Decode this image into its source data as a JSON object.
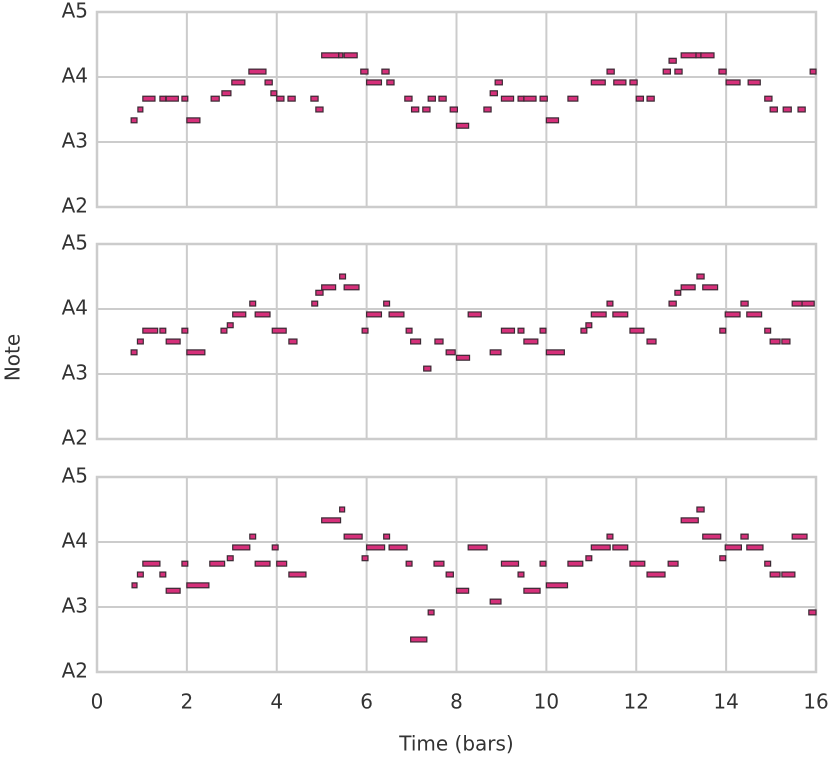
{
  "chart_data": [
    {
      "type": "piano-roll",
      "color": "#d6307a",
      "edgecolor": "#3b2a34",
      "grid": true,
      "xlim": [
        0,
        16
      ],
      "xticks": [
        0,
        2,
        4,
        6,
        8,
        10,
        12,
        14,
        16
      ],
      "ylim": [
        45,
        81
      ],
      "yticks": [
        {
          "value": 45,
          "label": "A2"
        },
        {
          "value": 57,
          "label": "A3"
        },
        {
          "value": 69,
          "label": "A4"
        },
        {
          "value": 81,
          "label": "A5"
        }
      ],
      "x": [
        0.76,
        0.91,
        1.02,
        1.4,
        1.54,
        1.89,
        2.0,
        2.54,
        2.78,
        3.0,
        3.38,
        3.74,
        3.87,
        4.0,
        4.25,
        4.76,
        4.87,
        5.0,
        5.38,
        5.5,
        5.87,
        6.0,
        6.34,
        6.45,
        6.85,
        7.0,
        7.25,
        7.37,
        7.61,
        7.86,
        8.0,
        8.61,
        8.75,
        8.86,
        9.0,
        9.37,
        9.5,
        9.86,
        10.0,
        10.48,
        11.0,
        11.35,
        11.5,
        11.86,
        12.0,
        12.24,
        12.6,
        12.73,
        12.86,
        13.0,
        13.33,
        13.44,
        13.84,
        14.0,
        14.49,
        14.86,
        14.98,
        15.27,
        15.6,
        15.87
      ],
      "duration": [
        0.13,
        0.11,
        0.27,
        0.13,
        0.27,
        0.13,
        0.29,
        0.18,
        0.2,
        0.29,
        0.38,
        0.16,
        0.13,
        0.16,
        0.16,
        0.16,
        0.16,
        0.38,
        0.09,
        0.29,
        0.16,
        0.33,
        0.16,
        0.16,
        0.16,
        0.16,
        0.16,
        0.16,
        0.16,
        0.16,
        0.27,
        0.16,
        0.16,
        0.16,
        0.27,
        0.13,
        0.27,
        0.16,
        0.27,
        0.22,
        0.31,
        0.16,
        0.27,
        0.16,
        0.16,
        0.16,
        0.16,
        0.16,
        0.16,
        0.33,
        0.11,
        0.29,
        0.16,
        0.31,
        0.27,
        0.16,
        0.16,
        0.18,
        0.16,
        0.13
      ],
      "values": [
        61,
        63,
        65,
        65,
        65,
        65,
        61,
        65,
        66,
        68,
        70,
        68,
        66,
        65,
        65,
        65,
        63,
        73,
        73,
        73,
        70,
        68,
        70,
        68,
        65,
        63,
        63,
        65,
        65,
        63,
        60,
        63,
        66,
        68,
        65,
        65,
        65,
        65,
        61,
        65,
        68,
        70,
        68,
        68,
        65,
        65,
        70,
        72,
        70,
        73,
        73,
        73,
        70,
        68,
        68,
        65,
        63,
        63,
        63,
        70
      ]
    },
    {
      "type": "piano-roll",
      "color": "#d6307a",
      "edgecolor": "#3b2a34",
      "grid": true,
      "ylabel": "Note",
      "xlim": [
        0,
        16
      ],
      "xticks": [
        0,
        2,
        4,
        6,
        8,
        10,
        12,
        14,
        16
      ],
      "ylim": [
        45,
        81
      ],
      "yticks": [
        {
          "value": 45,
          "label": "A2"
        },
        {
          "value": 57,
          "label": "A3"
        },
        {
          "value": 69,
          "label": "A4"
        },
        {
          "value": 81,
          "label": "A5"
        }
      ],
      "x": [
        0.76,
        0.9,
        1.02,
        1.4,
        1.54,
        1.89,
        2.0,
        2.76,
        2.9,
        3.02,
        3.4,
        3.52,
        3.9,
        4.27,
        4.78,
        4.87,
        5.0,
        5.4,
        5.5,
        5.9,
        6.0,
        6.38,
        6.5,
        6.88,
        6.98,
        7.27,
        7.52,
        7.77,
        8.0,
        8.26,
        8.75,
        9.0,
        9.37,
        9.5,
        9.86,
        10.0,
        10.77,
        10.88,
        11.0,
        11.35,
        11.48,
        11.86,
        12.24,
        12.73,
        12.86,
        13.0,
        13.35,
        13.48,
        13.86,
        13.98,
        14.33,
        14.46,
        14.86,
        14.98,
        15.24,
        15.47,
        15.69
      ],
      "duration": [
        0.13,
        0.13,
        0.33,
        0.13,
        0.31,
        0.13,
        0.4,
        0.13,
        0.13,
        0.29,
        0.13,
        0.33,
        0.31,
        0.18,
        0.13,
        0.16,
        0.31,
        0.13,
        0.33,
        0.13,
        0.33,
        0.13,
        0.33,
        0.13,
        0.22,
        0.16,
        0.18,
        0.2,
        0.29,
        0.29,
        0.24,
        0.29,
        0.13,
        0.31,
        0.13,
        0.4,
        0.13,
        0.13,
        0.33,
        0.13,
        0.33,
        0.31,
        0.2,
        0.16,
        0.13,
        0.31,
        0.16,
        0.33,
        0.13,
        0.33,
        0.16,
        0.33,
        0.13,
        0.22,
        0.18,
        0.22,
        0.27
      ],
      "values": [
        61,
        63,
        65,
        65,
        63,
        65,
        61,
        65,
        66,
        68,
        70,
        68,
        65,
        63,
        70,
        72,
        73,
        75,
        73,
        65,
        68,
        70,
        68,
        65,
        63,
        58,
        63,
        61,
        60,
        68,
        61,
        65,
        65,
        63,
        65,
        61,
        65,
        66,
        68,
        70,
        68,
        65,
        63,
        70,
        72,
        73,
        75,
        73,
        65,
        68,
        70,
        68,
        65,
        63,
        63,
        70,
        70
      ]
    },
    {
      "type": "piano-roll",
      "color": "#d6307a",
      "edgecolor": "#3b2a34",
      "grid": true,
      "xlabel": "Time (bars)",
      "xlim": [
        0,
        16
      ],
      "xticks": [
        0,
        2,
        4,
        6,
        8,
        10,
        12,
        14,
        16
      ],
      "ylim": [
        45,
        81
      ],
      "yticks": [
        {
          "value": 45,
          "label": "A2"
        },
        {
          "value": 57,
          "label": "A3"
        },
        {
          "value": 69,
          "label": "A4"
        },
        {
          "value": 81,
          "label": "A5"
        }
      ],
      "x": [
        0.78,
        0.9,
        1.02,
        1.4,
        1.54,
        1.89,
        2.0,
        2.51,
        2.9,
        3.02,
        3.4,
        3.52,
        3.9,
        4.0,
        4.27,
        5.0,
        5.4,
        5.5,
        5.9,
        6.0,
        6.38,
        6.5,
        6.88,
        6.98,
        7.37,
        7.5,
        7.77,
        8.0,
        8.26,
        8.75,
        9.0,
        9.37,
        9.5,
        9.86,
        10.0,
        10.48,
        10.88,
        11.0,
        11.35,
        11.48,
        11.86,
        12.24,
        12.71,
        13.0,
        13.35,
        13.48,
        13.86,
        13.98,
        14.33,
        14.46,
        14.86,
        14.98,
        15.24,
        15.47,
        15.84
      ],
      "duration": [
        0.11,
        0.13,
        0.38,
        0.13,
        0.31,
        0.13,
        0.49,
        0.33,
        0.13,
        0.38,
        0.13,
        0.33,
        0.13,
        0.22,
        0.38,
        0.42,
        0.11,
        0.4,
        0.13,
        0.4,
        0.13,
        0.4,
        0.13,
        0.36,
        0.13,
        0.22,
        0.16,
        0.27,
        0.42,
        0.24,
        0.38,
        0.13,
        0.36,
        0.13,
        0.47,
        0.33,
        0.13,
        0.42,
        0.13,
        0.33,
        0.33,
        0.4,
        0.22,
        0.38,
        0.16,
        0.4,
        0.13,
        0.36,
        0.16,
        0.36,
        0.13,
        0.22,
        0.29,
        0.33,
        0.16
      ],
      "values": [
        61,
        63,
        65,
        63,
        60,
        65,
        61,
        65,
        66,
        68,
        70,
        65,
        68,
        65,
        63,
        73,
        75,
        70,
        66,
        68,
        70,
        68,
        65,
        51,
        56,
        65,
        63,
        60,
        68,
        58,
        65,
        63,
        60,
        65,
        61,
        65,
        66,
        68,
        70,
        68,
        65,
        63,
        65,
        73,
        75,
        70,
        66,
        68,
        70,
        68,
        65,
        63,
        63,
        70,
        56
      ]
    }
  ]
}
